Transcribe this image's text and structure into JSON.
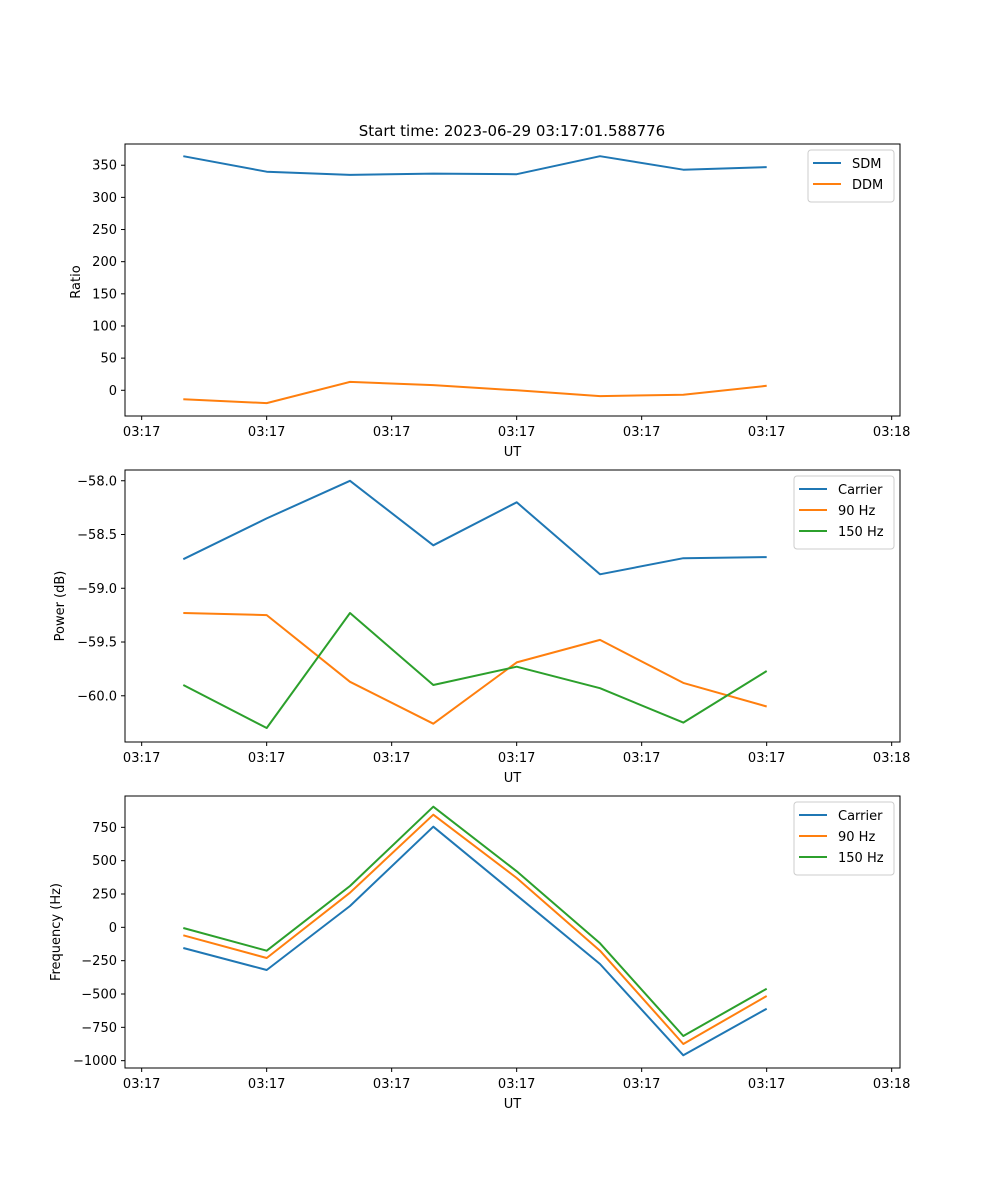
{
  "figure": {
    "title": "Start time: 2023-06-29 03:17:01.588776"
  },
  "chart_data": [
    {
      "type": "line",
      "title": "Start time: 2023-06-29 03:17:01.588776",
      "xlabel": "UT",
      "ylabel": "Ratio",
      "xlim": [
        -0.7,
        8.6
      ],
      "ylim": [
        -40,
        383
      ],
      "grid": false,
      "legend_placement": "top-right",
      "x_ticks": [
        {
          "x": -0.5,
          "label": "03:17"
        },
        {
          "x": 1,
          "label": "03:17"
        },
        {
          "x": 2.5,
          "label": "03:17"
        },
        {
          "x": 4,
          "label": "03:17"
        },
        {
          "x": 5.5,
          "label": "03:17"
        },
        {
          "x": 7,
          "label": "03:17"
        },
        {
          "x": 8.5,
          "label": "03:18"
        }
      ],
      "y_ticks": [
        {
          "v": 350,
          "label": "350"
        },
        {
          "v": 300,
          "label": "300"
        },
        {
          "v": 250,
          "label": "250"
        },
        {
          "v": 200,
          "label": "200"
        },
        {
          "v": 150,
          "label": "150"
        },
        {
          "v": 100,
          "label": "100"
        },
        {
          "v": 50,
          "label": "50"
        },
        {
          "v": 0,
          "label": "0"
        }
      ],
      "x": [
        0,
        1,
        2,
        3,
        4,
        5,
        6,
        7
      ],
      "series": [
        {
          "name": "SDM",
          "color": "#1f77b4",
          "values": [
            364,
            340,
            335,
            337,
            336,
            364,
            343,
            347
          ]
        },
        {
          "name": "DDM",
          "color": "#ff7f0e",
          "values": [
            -14,
            -20,
            13,
            8,
            0,
            -9,
            -7,
            7
          ]
        }
      ]
    },
    {
      "type": "line",
      "title": "",
      "xlabel": "UT",
      "ylabel": "Power (dB)",
      "xlim": [
        -0.7,
        8.6
      ],
      "ylim": [
        -60.43,
        -57.9
      ],
      "grid": false,
      "legend_placement": "top-right",
      "x_ticks": [
        {
          "x": -0.5,
          "label": "03:17"
        },
        {
          "x": 1,
          "label": "03:17"
        },
        {
          "x": 2.5,
          "label": "03:17"
        },
        {
          "x": 4,
          "label": "03:17"
        },
        {
          "x": 5.5,
          "label": "03:17"
        },
        {
          "x": 7,
          "label": "03:17"
        },
        {
          "x": 8.5,
          "label": "03:18"
        }
      ],
      "y_ticks": [
        {
          "v": -58.0,
          "label": "−58.0"
        },
        {
          "v": -58.5,
          "label": "−58.5"
        },
        {
          "v": -59.0,
          "label": "−59.0"
        },
        {
          "v": -59.5,
          "label": "−59.5"
        },
        {
          "v": -60.0,
          "label": "−60.0"
        }
      ],
      "x": [
        0,
        1,
        2,
        3,
        4,
        5,
        6,
        7
      ],
      "series": [
        {
          "name": "Carrier",
          "color": "#1f77b4",
          "values": [
            -58.73,
            -58.35,
            -58.0,
            -58.6,
            -58.2,
            -58.87,
            -58.72,
            -58.71
          ]
        },
        {
          "name": "90 Hz",
          "color": "#ff7f0e",
          "values": [
            -59.23,
            -59.25,
            -59.87,
            -60.26,
            -59.69,
            -59.48,
            -59.88,
            -60.1
          ]
        },
        {
          "name": "150 Hz",
          "color": "#2ca02c",
          "values": [
            -59.9,
            -60.3,
            -59.23,
            -59.9,
            -59.73,
            -59.93,
            -60.25,
            -59.77
          ]
        }
      ]
    },
    {
      "type": "line",
      "title": "",
      "xlabel": "UT",
      "ylabel": "Frequency (Hz)",
      "xlim": [
        -0.7,
        8.6
      ],
      "ylim": [
        -1055,
        985
      ],
      "grid": false,
      "legend_placement": "top-right",
      "x_ticks": [
        {
          "x": -0.5,
          "label": "03:17"
        },
        {
          "x": 1,
          "label": "03:17"
        },
        {
          "x": 2.5,
          "label": "03:17"
        },
        {
          "x": 4,
          "label": "03:17"
        },
        {
          "x": 5.5,
          "label": "03:17"
        },
        {
          "x": 7,
          "label": "03:17"
        },
        {
          "x": 8.5,
          "label": "03:18"
        }
      ],
      "y_ticks": [
        {
          "v": 750,
          "label": "750"
        },
        {
          "v": 500,
          "label": "500"
        },
        {
          "v": 250,
          "label": "250"
        },
        {
          "v": 0,
          "label": "0"
        },
        {
          "v": -250,
          "label": "−250"
        },
        {
          "v": -500,
          "label": "−500"
        },
        {
          "v": -750,
          "label": "−750"
        },
        {
          "v": -1000,
          "label": "−1000"
        }
      ],
      "x": [
        0,
        1,
        2,
        3,
        4,
        5,
        6,
        7
      ],
      "series": [
        {
          "name": "Carrier",
          "color": "#1f77b4",
          "values": [
            -155,
            -320,
            160,
            755,
            240,
            -275,
            -960,
            -610
          ]
        },
        {
          "name": "90 Hz",
          "color": "#ff7f0e",
          "values": [
            -60,
            -230,
            260,
            845,
            370,
            -175,
            -875,
            -515
          ]
        },
        {
          "name": "150 Hz",
          "color": "#2ca02c",
          "values": [
            -5,
            -175,
            310,
            905,
            420,
            -120,
            -815,
            -460
          ]
        }
      ]
    }
  ]
}
